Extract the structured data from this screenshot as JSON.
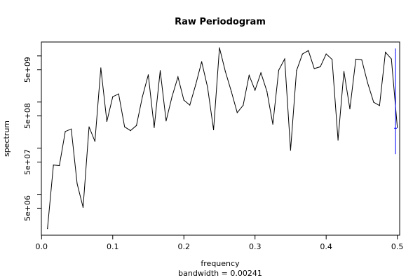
{
  "chart_data": {
    "type": "line",
    "title": "Raw Periodogram",
    "xlabel": "frequency",
    "ylabel": "spectrum",
    "subtitle": "bandwidth = 0.00241",
    "x_ticks": [
      0.0,
      0.1,
      0.2,
      0.3,
      0.4,
      0.5
    ],
    "x_tick_labels": [
      "0.0",
      "0.1",
      "0.2",
      "0.3",
      "0.4",
      "0.5"
    ],
    "y_ticks_labeled": [
      5000000,
      50000000,
      500000000,
      5000000000
    ],
    "y_tick_labels": [
      "5e+06",
      "5e+07",
      "5e+08",
      "5e+09"
    ],
    "y_ticks_minor": [
      10000000,
      100000000,
      1000000000,
      10000000000
    ],
    "y_scale": "log",
    "xlim": [
      -0.0003,
      0.5033
    ],
    "ylim": [
      1300000,
      20000000000
    ],
    "series": [
      {
        "x": [
          0.0083,
          0.0167,
          0.025,
          0.0333,
          0.0417,
          0.05,
          0.0583,
          0.0667,
          0.075,
          0.0833,
          0.0917,
          0.1,
          0.1083,
          0.1167,
          0.125,
          0.1333,
          0.1417,
          0.15,
          0.1583,
          0.1667,
          0.175,
          0.1833,
          0.1917,
          0.2,
          0.2083,
          0.2167,
          0.225,
          0.2333,
          0.2417,
          0.25,
          0.2583,
          0.2667,
          0.275,
          0.2833,
          0.2917,
          0.3,
          0.3083,
          0.3167,
          0.325,
          0.3333,
          0.3417,
          0.35,
          0.3583,
          0.3667,
          0.375,
          0.3833,
          0.3917,
          0.4,
          0.4083,
          0.4167,
          0.425,
          0.4333,
          0.4417,
          0.45,
          0.4583,
          0.4667,
          0.475,
          0.4833,
          0.4917,
          0.5
        ],
        "values": [
          1800000,
          43000000,
          42000000,
          230000000,
          260000000,
          17000000,
          5200000,
          290000000,
          140000000,
          5500000000,
          380000000,
          1300000000,
          1500000000,
          290000000,
          240000000,
          310000000,
          1300000000,
          3900000000,
          280000000,
          4800000000,
          390000000,
          1300000000,
          3500000000,
          1100000000,
          860000000,
          2400000000,
          7500000000,
          2100000000,
          250000000,
          15000000000,
          4600000000,
          1700000000,
          590000000,
          850000000,
          3800000000,
          1800000000,
          4300000000,
          1700000000,
          330000000,
          4900000000,
          8600000000,
          90000000,
          4800000000,
          11000000000,
          13000000000,
          5300000000,
          5800000000,
          11000000000,
          8400000000,
          150000000,
          4600000000,
          710000000,
          8500000000,
          8200000000,
          2600000000,
          990000000,
          840000000,
          12000000000,
          8600000000,
          280000000
        ]
      }
    ],
    "confidence_bar": {
      "x": 0.4975,
      "lower": 74000000,
      "upper": 14500000000,
      "center": 270000000,
      "color": "#0000ff"
    },
    "grid": false,
    "legend": "none"
  }
}
